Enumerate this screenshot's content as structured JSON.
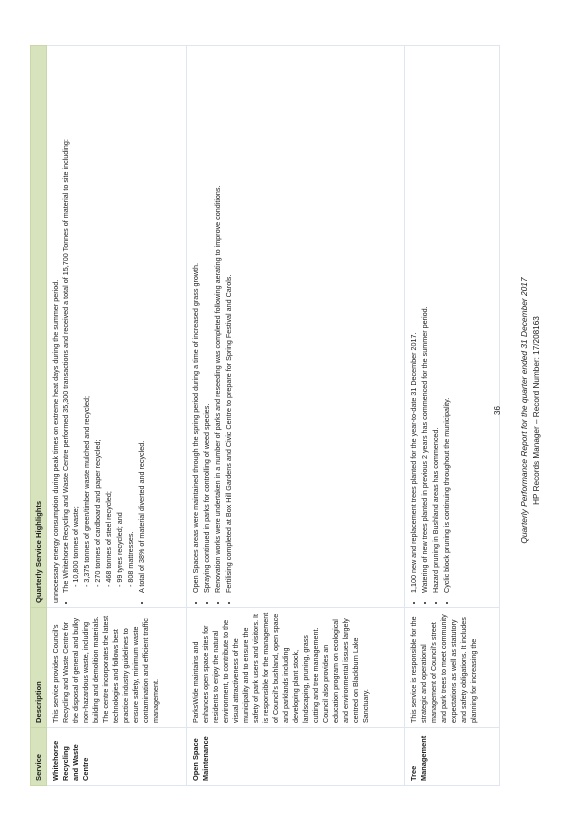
{
  "table": {
    "headers": [
      "Service",
      "Description",
      "Quarterly Service Highlights"
    ],
    "rows": [
      {
        "service": "Whitehorse Recycling and Waste Centre",
        "description": "This service provides Council's Recycling and Waste Centre for the disposal of general and bulky non-hazardous waste, including building and demolition materials. The centre incorporates the latest technologies and follows best practice industry guidelines to ensure safety, minimum waste contamination and efficient traffic management.",
        "lead": "unnecessary energy consumption during peak times on extreme heat days during the summer period.",
        "highlights": [
          "The Whitehorse Recycling and Waste Centre performed 35,300 transactions and received a total of 15,700 Tonnes of material to site including:",
          "A total of 38% of material diverted and recycled."
        ],
        "sub_items": [
          "10,800 tonnes of waste;",
          "3,375 tonnes of green/timber waste mulched and recycled;",
          "270 tonnes of cardboard and paper recycled;",
          "468 tonnes of steel recycled;",
          "99 tyres recycled; and",
          "808 mattresses."
        ]
      },
      {
        "service": "Open Space Maintenance",
        "description": "ParksWide maintains and enhances open space sites for residents to enjoy the natural environment, to contribute to the visual attractiveness of the municipality and to ensure the safety of park users and visitors. It is responsible for the management of Council's bushland, open space and parklands including developing plant stock, landscaping, pruning, grass cutting and tree management. Council also provides an education program on ecological and environmental issues largely centred on Blackburn Lake Sanctuary.",
        "highlights": [
          "Open Spaces areas were maintained through the spring period during a time of increased grass growth.",
          "Spraying continued in parks for controlling of weed species.",
          "Renovation works were undertaken in a number of parks and reseeding was completed following aerating to improve conditions.",
          "Fertilising completed at Box Hill Gardens and Civic Centre to prepare for Spring Festival and Carols."
        ]
      },
      {
        "service": "Tree Management",
        "description": "This service is responsible for the strategic and operational management of Council's street and park trees to meet community expectations as well as statutory and safety obligations. It includes planning for increasing the",
        "highlights": [
          "1,100 new and replacement trees planted for the year-to-date 31 December 2017.",
          "Watering of new trees planted in previous 2 years has commenced for the summer period.",
          "Hazard pruning in Bushland areas has commenced.",
          "Cyclic block pruning is continuing throughout the municipality."
        ]
      }
    ]
  },
  "page_number": "36",
  "footer": {
    "title": "Quarterly Performance Report for the quarter ended 31 December 2017",
    "record": "HP Records Manager – Record Number: 17/208163"
  }
}
